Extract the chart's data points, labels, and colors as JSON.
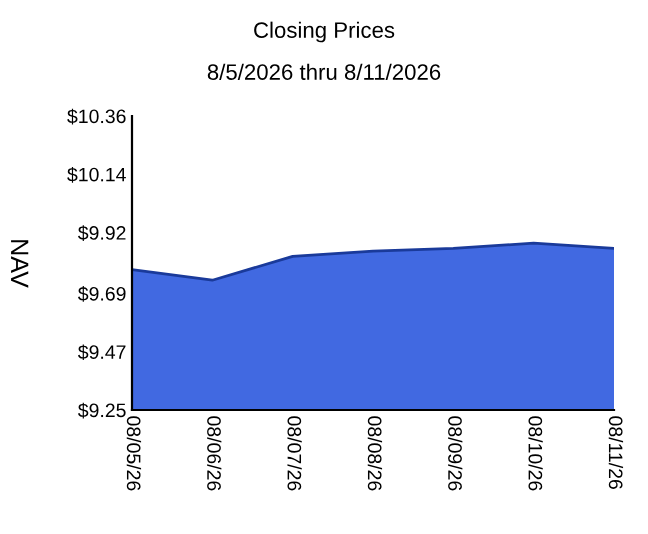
{
  "chart_data": {
    "type": "area",
    "title": "Closing Prices",
    "subtitle": "8/5/2026 thru 8/11/2026",
    "ylabel": "NAV",
    "categories": [
      "08/05/26",
      "08/06/26",
      "08/07/26",
      "08/08/26",
      "08/09/26",
      "08/10/26",
      "08/11/26"
    ],
    "series": [
      {
        "color": "#4169e1",
        "values": [
          9.78,
          9.74,
          9.83,
          9.85,
          9.86,
          9.88,
          9.86
        ]
      }
    ],
    "ylim": [
      9.25,
      10.36
    ],
    "yticks": [
      {
        "value": 9.25,
        "label": "$9.25"
      },
      {
        "value": 9.47,
        "label": "$9.47"
      },
      {
        "value": 9.69,
        "label": "$9.69"
      },
      {
        "value": 9.92,
        "label": "$9.92"
      },
      {
        "value": 10.14,
        "label": "$10.14"
      },
      {
        "value": 10.36,
        "label": "$10.36"
      }
    ],
    "grid": false,
    "legend": false
  }
}
